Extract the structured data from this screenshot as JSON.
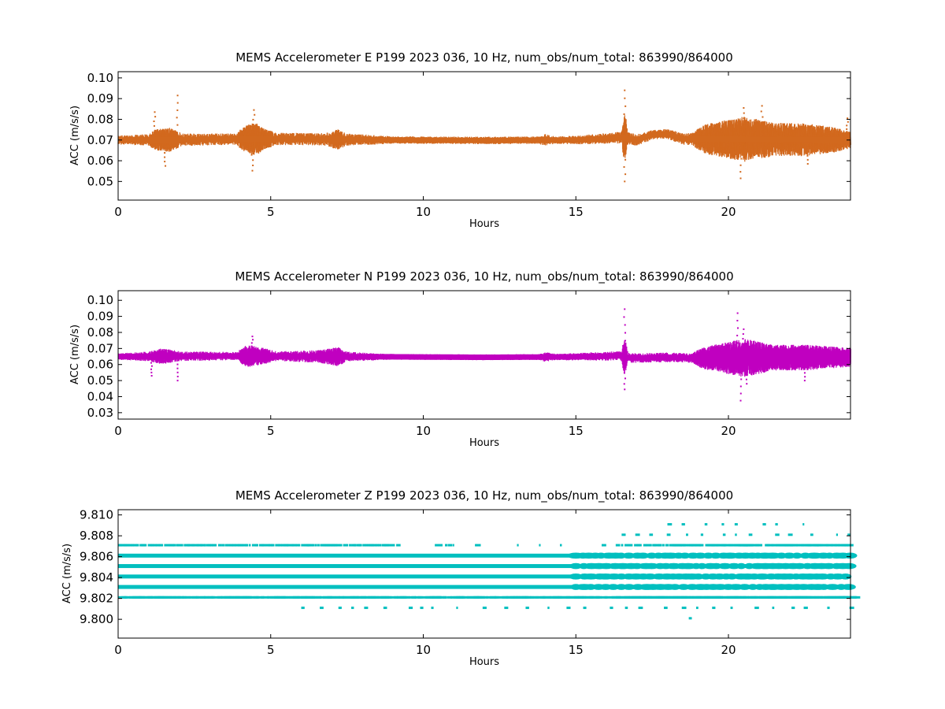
{
  "chart_data": [
    {
      "type": "scatter",
      "title": "MEMS Accelerometer E P199 2023 036, 10 Hz, num_obs/num_total: 863990/864000",
      "xlabel": "Hours",
      "ylabel": "ACC (m/s/s)",
      "xlim": [
        0,
        24
      ],
      "ylim": [
        0.041,
        0.103
      ],
      "xticks": [
        "0",
        "5",
        "10",
        "15",
        "20"
      ],
      "yticks": [
        "0.05",
        "0.06",
        "0.07",
        "0.08",
        "0.09",
        "0.10"
      ],
      "color": "#d2691e",
      "grid": false,
      "series": [
        {
          "baseline": [
            [
              0,
              0.07
            ],
            [
              2.5,
              0.0702
            ],
            [
              4,
              0.0705
            ],
            [
              5.5,
              0.0705
            ],
            [
              7,
              0.0703
            ],
            [
              9,
              0.07
            ],
            [
              12,
              0.0698
            ],
            [
              15,
              0.07
            ],
            [
              16.5,
              0.0712
            ],
            [
              17,
              0.07
            ],
            [
              17.5,
              0.0725
            ],
            [
              18,
              0.073
            ],
            [
              18.5,
              0.0705
            ],
            [
              20,
              0.0705
            ],
            [
              24,
              0.07
            ]
          ],
          "band": [
            [
              0,
              0.0022
            ],
            [
              1,
              0.0028
            ],
            [
              1.2,
              0.005
            ],
            [
              1.7,
              0.006
            ],
            [
              2.1,
              0.003
            ],
            [
              3.9,
              0.0028
            ],
            [
              4.1,
              0.006
            ],
            [
              4.5,
              0.008
            ],
            [
              4.8,
              0.005
            ],
            [
              5.2,
              0.003
            ],
            [
              6.8,
              0.003
            ],
            [
              7.2,
              0.005
            ],
            [
              7.5,
              0.003
            ],
            [
              9,
              0.0018
            ],
            [
              13.8,
              0.0018
            ],
            [
              14,
              0.003
            ],
            [
              14.3,
              0.0018
            ],
            [
              16.5,
              0.0028
            ],
            [
              16.6,
              0.012
            ],
            [
              16.7,
              0.003
            ],
            [
              17.8,
              0.0022
            ],
            [
              18.8,
              0.003
            ],
            [
              19.2,
              0.007
            ],
            [
              20.5,
              0.011
            ],
            [
              21.5,
              0.008
            ],
            [
              22.5,
              0.008
            ],
            [
              23.5,
              0.006
            ],
            [
              24,
              0.004
            ]
          ],
          "spikes": [
            [
              1.95,
              0.0915
            ],
            [
              16.6,
              0.094
            ],
            [
              16.6,
              0.05
            ],
            [
              20.4,
              0.0515
            ],
            [
              4.4,
              0.0552
            ],
            [
              21.1,
              0.0865
            ],
            [
              22.6,
              0.0585
            ],
            [
              1.55,
              0.0575
            ],
            [
              20.5,
              0.0855
            ],
            [
              4.45,
              0.0845
            ],
            [
              1.2,
              0.0835
            ],
            [
              23.9,
              0.0805
            ]
          ]
        }
      ]
    },
    {
      "type": "scatter",
      "title": "MEMS Accelerometer N P199 2023 036, 10 Hz, num_obs/num_total: 863990/864000",
      "xlabel": "Hours",
      "ylabel": "ACC (m/s/s)",
      "xlim": [
        0,
        24
      ],
      "ylim": [
        0.026,
        0.106
      ],
      "xticks": [
        "0",
        "5",
        "10",
        "15",
        "20"
      ],
      "yticks": [
        "0.03",
        "0.04",
        "0.05",
        "0.06",
        "0.07",
        "0.08",
        "0.09",
        "0.10"
      ],
      "color": "#c000c0",
      "grid": false,
      "series": [
        {
          "baseline": [
            [
              0,
              0.065
            ],
            [
              4,
              0.0653
            ],
            [
              9,
              0.0648
            ],
            [
              12,
              0.0645
            ],
            [
              15,
              0.0648
            ],
            [
              16.5,
              0.0655
            ],
            [
              16.8,
              0.064
            ],
            [
              18,
              0.0645
            ],
            [
              19,
              0.064
            ],
            [
              24,
              0.0645
            ]
          ],
          "band": [
            [
              0,
              0.002
            ],
            [
              1,
              0.003
            ],
            [
              1.4,
              0.005
            ],
            [
              2.1,
              0.003
            ],
            [
              3.9,
              0.0025
            ],
            [
              4.2,
              0.007
            ],
            [
              4.8,
              0.005
            ],
            [
              5.2,
              0.003
            ],
            [
              6.6,
              0.004
            ],
            [
              7.2,
              0.006
            ],
            [
              7.5,
              0.003
            ],
            [
              9,
              0.0018
            ],
            [
              13.8,
              0.0018
            ],
            [
              14,
              0.003
            ],
            [
              14.3,
              0.002
            ],
            [
              16.5,
              0.003
            ],
            [
              16.6,
              0.012
            ],
            [
              16.7,
              0.003
            ],
            [
              18.8,
              0.003
            ],
            [
              19.2,
              0.007
            ],
            [
              20.5,
              0.012
            ],
            [
              21.5,
              0.008
            ],
            [
              22.5,
              0.008
            ],
            [
              24,
              0.006
            ]
          ],
          "spikes": [
            [
              16.6,
              0.0945
            ],
            [
              16.6,
              0.0445
            ],
            [
              20.3,
              0.092
            ],
            [
              20.4,
              0.0375
            ],
            [
              1.1,
              0.053
            ],
            [
              1.95,
              0.05
            ],
            [
              20.5,
              0.082
            ],
            [
              22.5,
              0.05
            ],
            [
              4.4,
              0.0775
            ],
            [
              20.6,
              0.048
            ]
          ]
        }
      ]
    },
    {
      "type": "scatter",
      "title": "MEMS Accelerometer Z P199 2023 036, 10 Hz, num_obs/num_total: 863990/864000",
      "xlabel": "Hours",
      "ylabel": "ACC (m/s/s)",
      "xlim": [
        0,
        24
      ],
      "ylim": [
        9.7982,
        9.8105
      ],
      "xticks": [
        "0",
        "5",
        "10",
        "15",
        "20"
      ],
      "yticks": [
        "9.800",
        "9.802",
        "9.804",
        "9.806",
        "9.808",
        "9.810"
      ],
      "color": "#00bfbf",
      "grid": false,
      "series": [
        {
          "quantized_levels": [
            {
              "y": 9.8031,
              "density": "full",
              "x_range": [
                0,
                24
              ]
            },
            {
              "y": 9.8041,
              "density": "full",
              "x_range": [
                0,
                24
              ]
            },
            {
              "y": 9.8051,
              "density": "full",
              "x_range": [
                0,
                24
              ]
            },
            {
              "y": 9.8061,
              "density": "full",
              "x_range": [
                0,
                24
              ]
            },
            {
              "y": 9.8021,
              "density": "dashed",
              "x_range": [
                0,
                24
              ]
            },
            {
              "y": 9.8071,
              "density": "sparse",
              "x_range": [
                0,
                24
              ]
            },
            {
              "y": 9.8011,
              "density": "rare",
              "x_range": [
                6,
                24
              ]
            },
            {
              "y": 9.8081,
              "density": "rare",
              "x_range": [
                16.5,
                24
              ]
            },
            {
              "y": 9.8091,
              "density": "rare",
              "x_range": [
                18,
                23
              ]
            },
            {
              "y": 9.8001,
              "density": "rare",
              "x_range": [
                18.7,
                18.8
              ]
            }
          ]
        }
      ]
    }
  ]
}
